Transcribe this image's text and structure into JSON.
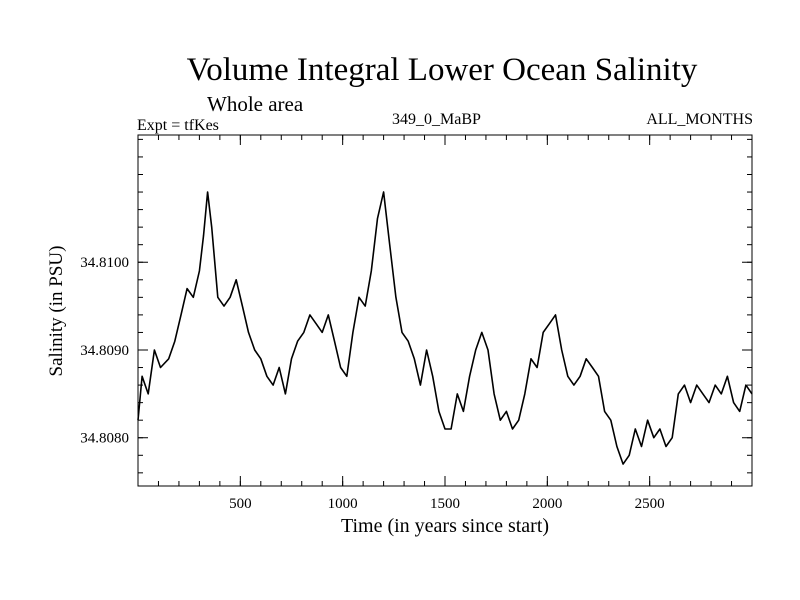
{
  "chart_data": {
    "type": "line",
    "title": "Volume Integral Lower Ocean Salinity",
    "subtitle": "Whole area",
    "header_left": "Expt = tfKes",
    "header_center": "349_0_MaBP",
    "header_right": "ALL_MONTHS",
    "xlabel": "Time (in years since start)",
    "ylabel": "Salinity (in PSU)",
    "xlim": [
      0,
      3000
    ],
    "ylim": [
      34.80745,
      34.81145
    ],
    "xticks": [
      500,
      1000,
      1500,
      2000,
      2500
    ],
    "xtick_labels": [
      "500",
      "1000",
      "1500",
      "2000",
      "2500"
    ],
    "yticks": [
      34.808,
      34.809,
      34.81
    ],
    "ytick_labels": [
      "34.8080",
      "34.8090",
      "34.8100"
    ],
    "grid": false,
    "series": [
      {
        "color": "#000000",
        "x": [
          0,
          20,
          50,
          80,
          110,
          150,
          180,
          210,
          240,
          270,
          300,
          320,
          340,
          360,
          390,
          420,
          450,
          480,
          510,
          540,
          570,
          600,
          630,
          660,
          690,
          720,
          750,
          780,
          810,
          840,
          870,
          900,
          930,
          960,
          990,
          1020,
          1050,
          1080,
          1110,
          1140,
          1170,
          1200,
          1230,
          1260,
          1290,
          1320,
          1350,
          1380,
          1410,
          1440,
          1470,
          1500,
          1530,
          1560,
          1590,
          1620,
          1650,
          1680,
          1710,
          1740,
          1770,
          1800,
          1830,
          1860,
          1890,
          1920,
          1950,
          1980,
          2010,
          2040,
          2070,
          2100,
          2130,
          2160,
          2190,
          2220,
          2250,
          2280,
          2310,
          2340,
          2370,
          2400,
          2430,
          2460,
          2490,
          2520,
          2550,
          2580,
          2610,
          2640,
          2670,
          2700,
          2730,
          2760,
          2790,
          2820,
          2850,
          2880,
          2910,
          2940,
          2970,
          3000
        ],
        "y": [
          34.8082,
          34.8087,
          34.8085,
          34.809,
          34.8088,
          34.8089,
          34.8091,
          34.8094,
          34.8097,
          34.8096,
          34.8099,
          34.8103,
          34.8108,
          34.8104,
          34.8096,
          34.8095,
          34.8096,
          34.8098,
          34.8095,
          34.8092,
          34.809,
          34.8089,
          34.8087,
          34.8086,
          34.8088,
          34.8085,
          34.8089,
          34.8091,
          34.8092,
          34.8094,
          34.8093,
          34.8092,
          34.8094,
          34.8091,
          34.8088,
          34.8087,
          34.8092,
          34.8096,
          34.8095,
          34.8099,
          34.8105,
          34.8108,
          34.8102,
          34.8096,
          34.8092,
          34.8091,
          34.8089,
          34.8086,
          34.809,
          34.8087,
          34.8083,
          34.8081,
          34.8081,
          34.8085,
          34.8083,
          34.8087,
          34.809,
          34.8092,
          34.809,
          34.8085,
          34.8082,
          34.8083,
          34.8081,
          34.8082,
          34.8085,
          34.8089,
          34.8088,
          34.8092,
          34.8093,
          34.8094,
          34.809,
          34.8087,
          34.8086,
          34.8087,
          34.8089,
          34.8088,
          34.8087,
          34.8083,
          34.8082,
          34.8079,
          34.8077,
          34.8078,
          34.8081,
          34.8079,
          34.8082,
          34.808,
          34.8081,
          34.8079,
          34.808,
          34.8085,
          34.8086,
          34.8084,
          34.8086,
          34.8085,
          34.8084,
          34.8086,
          34.8085,
          34.8087,
          34.8084,
          34.8083,
          34.8086,
          34.8085
        ]
      }
    ]
  }
}
